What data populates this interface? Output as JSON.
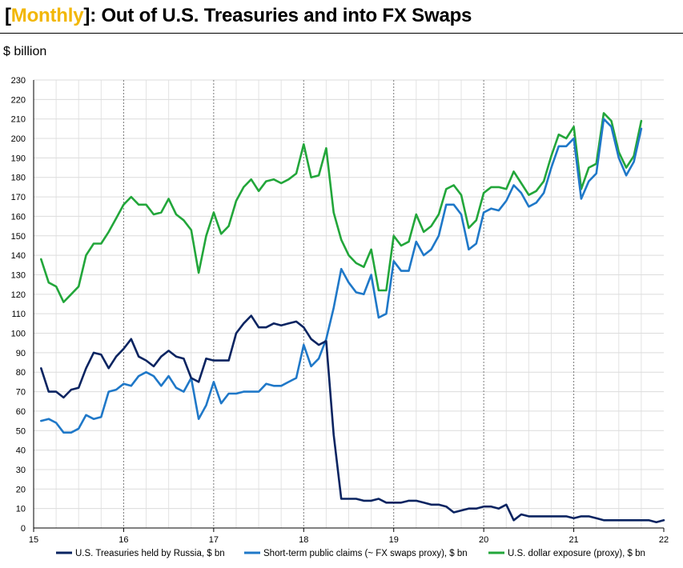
{
  "title": {
    "highlight": "Monthly",
    "open_bracket": "[",
    "close_bracket": "]",
    "rest": ": Out of U.S. Treasuries and into FX Swaps"
  },
  "unit_label": "$ billion",
  "colors": {
    "accent": "#f2b705",
    "russia": "#0a2461",
    "short_term": "#1f78c8",
    "usd_exposure": "#22a63a"
  },
  "chart_data": {
    "type": "line",
    "title": "[Monthly]: Out of U.S. Treasuries and into FX Swaps",
    "ylabel": "$ billion",
    "xlim": [
      15,
      22
    ],
    "ylim": [
      0,
      230
    ],
    "y_ticks": [
      0,
      10,
      20,
      30,
      40,
      50,
      60,
      70,
      80,
      90,
      100,
      110,
      120,
      130,
      140,
      150,
      160,
      170,
      180,
      190,
      200,
      210,
      220,
      230
    ],
    "x_ticks": [
      15,
      16,
      17,
      18,
      19,
      20,
      21,
      22
    ],
    "x_tick_labels": [
      "15",
      "16",
      "17",
      "18",
      "19",
      "20",
      "21",
      "22"
    ],
    "legend_position": "bottom",
    "series": [
      {
        "name": "U.S. Treasuries held by Russia, $ bn",
        "color": "#0a2461",
        "x": [
          15.083,
          15.167,
          15.25,
          15.333,
          15.417,
          15.5,
          15.583,
          15.667,
          15.75,
          15.833,
          15.917,
          16.0,
          16.083,
          16.167,
          16.25,
          16.333,
          16.417,
          16.5,
          16.583,
          16.667,
          16.75,
          16.833,
          16.917,
          17.0,
          17.083,
          17.167,
          17.25,
          17.333,
          17.417,
          17.5,
          17.583,
          17.667,
          17.75,
          17.833,
          17.917,
          18.0,
          18.083,
          18.167,
          18.25,
          18.333,
          18.417,
          18.5,
          18.583,
          18.667,
          18.75,
          18.833,
          18.917,
          19.0,
          19.083,
          19.167,
          19.25,
          19.333,
          19.417,
          19.5,
          19.583,
          19.667,
          19.75,
          19.833,
          19.917,
          20.0,
          20.083,
          20.167,
          20.25,
          20.333,
          20.417,
          20.5,
          20.583,
          20.667,
          20.75,
          20.833,
          20.917,
          21.0,
          21.083,
          21.167,
          21.25,
          21.333,
          21.417,
          21.5,
          21.583,
          21.667,
          21.75,
          21.833,
          21.917,
          22.0
        ],
        "values": [
          82,
          70,
          70,
          67,
          71,
          72,
          82,
          90,
          89,
          82,
          88,
          92,
          97,
          88,
          86,
          83,
          88,
          91,
          88,
          87,
          77,
          75,
          87,
          86,
          86,
          86,
          100,
          105,
          109,
          103,
          103,
          105,
          104,
          105,
          106,
          103,
          97,
          94,
          96,
          48,
          15,
          15,
          15,
          14,
          14,
          15,
          13,
          13,
          13,
          14,
          14,
          13,
          12,
          12,
          11,
          8,
          9,
          10,
          10,
          11,
          11,
          10,
          12,
          4,
          7,
          6,
          6,
          6,
          6,
          6,
          6,
          5,
          6,
          6,
          5,
          4,
          4,
          4,
          4,
          4,
          4,
          4,
          3,
          4
        ]
      },
      {
        "name": "Short-term public claims (~ FX swaps proxy), $ bn",
        "color": "#1f78c8",
        "x": [
          15.083,
          15.167,
          15.25,
          15.333,
          15.417,
          15.5,
          15.583,
          15.667,
          15.75,
          15.833,
          15.917,
          16.0,
          16.083,
          16.167,
          16.25,
          16.333,
          16.417,
          16.5,
          16.583,
          16.667,
          16.75,
          16.833,
          16.917,
          17.0,
          17.083,
          17.167,
          17.25,
          17.333,
          17.417,
          17.5,
          17.583,
          17.667,
          17.75,
          17.833,
          17.917,
          18.0,
          18.083,
          18.167,
          18.25,
          18.333,
          18.417,
          18.5,
          18.583,
          18.667,
          18.75,
          18.833,
          18.917,
          19.0,
          19.083,
          19.167,
          19.25,
          19.333,
          19.417,
          19.5,
          19.583,
          19.667,
          19.75,
          19.833,
          19.917,
          20.0,
          20.083,
          20.167,
          20.25,
          20.333,
          20.417,
          20.5,
          20.583,
          20.667,
          20.75,
          20.833,
          20.917,
          21.0,
          21.083,
          21.167,
          21.25,
          21.333,
          21.417,
          21.5,
          21.583,
          21.667,
          21.75
        ],
        "values": [
          55,
          56,
          54,
          49,
          49,
          51,
          58,
          56,
          57,
          70,
          71,
          74,
          73,
          78,
          80,
          78,
          73,
          78,
          72,
          70,
          77,
          56,
          63,
          75,
          64,
          69,
          69,
          70,
          70,
          70,
          74,
          73,
          73,
          75,
          77,
          94,
          83,
          87,
          97,
          113,
          133,
          126,
          121,
          120,
          130,
          108,
          110,
          137,
          132,
          132,
          147,
          140,
          143,
          150,
          166,
          166,
          161,
          143,
          146,
          162,
          164,
          163,
          168,
          176,
          172,
          165,
          167,
          172,
          185,
          196,
          196,
          200,
          169,
          178,
          182,
          210,
          206,
          190,
          181,
          188,
          205
        ]
      },
      {
        "name": "U.S. dollar exposure (proxy), $ bn",
        "color": "#22a63a",
        "x": [
          15.083,
          15.167,
          15.25,
          15.333,
          15.417,
          15.5,
          15.583,
          15.667,
          15.75,
          15.833,
          15.917,
          16.0,
          16.083,
          16.167,
          16.25,
          16.333,
          16.417,
          16.5,
          16.583,
          16.667,
          16.75,
          16.833,
          16.917,
          17.0,
          17.083,
          17.167,
          17.25,
          17.333,
          17.417,
          17.5,
          17.583,
          17.667,
          17.75,
          17.833,
          17.917,
          18.0,
          18.083,
          18.167,
          18.25,
          18.333,
          18.417,
          18.5,
          18.583,
          18.667,
          18.75,
          18.833,
          18.917,
          19.0,
          19.083,
          19.167,
          19.25,
          19.333,
          19.417,
          19.5,
          19.583,
          19.667,
          19.75,
          19.833,
          19.917,
          20.0,
          20.083,
          20.167,
          20.25,
          20.333,
          20.417,
          20.5,
          20.583,
          20.667,
          20.75,
          20.833,
          20.917,
          21.0,
          21.083,
          21.167,
          21.25,
          21.333,
          21.417,
          21.5,
          21.583,
          21.667,
          21.75
        ],
        "values": [
          138,
          126,
          124,
          116,
          120,
          124,
          140,
          146,
          146,
          152,
          159,
          166,
          170,
          166,
          166,
          161,
          162,
          169,
          161,
          158,
          153,
          131,
          150,
          162,
          151,
          155,
          168,
          175,
          179,
          173,
          178,
          179,
          177,
          179,
          182,
          197,
          180,
          181,
          195,
          162,
          148,
          140,
          136,
          134,
          143,
          122,
          122,
          150,
          145,
          147,
          161,
          152,
          155,
          161,
          174,
          176,
          171,
          154,
          158,
          172,
          175,
          175,
          174,
          183,
          177,
          171,
          173,
          178,
          191,
          202,
          200,
          206,
          174,
          185,
          187,
          213,
          209,
          193,
          185,
          191,
          209
        ]
      }
    ]
  }
}
